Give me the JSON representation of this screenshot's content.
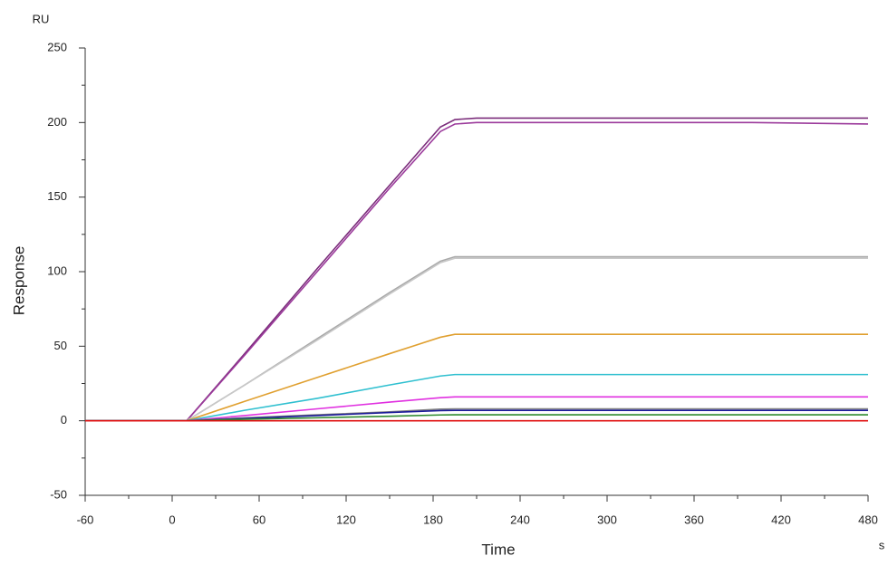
{
  "chart_data": {
    "type": "line",
    "x_unit": "s",
    "y_unit": "RU",
    "xlabel": "Time",
    "ylabel": "Response",
    "x": [
      -60,
      10,
      50,
      100,
      150,
      185,
      195,
      210,
      300,
      400,
      480
    ],
    "series": [
      {
        "color": "#7b2d7b",
        "values": [
          0,
          0,
          45,
          102,
          158,
          197,
          202,
          203,
          203,
          203,
          203
        ]
      },
      {
        "color": "#9b3a9b",
        "values": [
          0,
          0,
          44,
          100,
          156,
          194,
          199,
          200,
          200,
          200,
          199
        ]
      },
      {
        "color": "#a9a9a9",
        "values": [
          0,
          0,
          24,
          55,
          86,
          107,
          110,
          110,
          110,
          110,
          110
        ]
      },
      {
        "color": "#c8c8c8",
        "values": [
          0,
          0,
          24,
          54,
          85,
          106,
          109,
          109,
          109,
          109,
          109
        ]
      },
      {
        "color": "#e0a030",
        "values": [
          0,
          0,
          13,
          29,
          45,
          56,
          58,
          58,
          58,
          58,
          58
        ]
      },
      {
        "color": "#30c0d0",
        "values": [
          0,
          0,
          7,
          15,
          24,
          30,
          31,
          31,
          31,
          31,
          31
        ]
      },
      {
        "color": "#e030e0",
        "values": [
          0,
          0,
          3.5,
          8,
          12.5,
          15.5,
          16,
          16,
          16,
          16,
          16
        ]
      },
      {
        "color": "#808080",
        "values": [
          0,
          0,
          2,
          4,
          6,
          7.8,
          8,
          8,
          8,
          8,
          8
        ]
      },
      {
        "color": "#1a1a9a",
        "values": [
          0,
          0,
          1.5,
          3.5,
          5.5,
          6.8,
          7,
          7,
          7,
          7,
          7
        ]
      },
      {
        "color": "#2e8b2e",
        "values": [
          0,
          0,
          1,
          2,
          3,
          3.9,
          4,
          4,
          4,
          4,
          4
        ]
      },
      {
        "color": "#e01010",
        "values": [
          0,
          0,
          0,
          0,
          0,
          0,
          0,
          0,
          0,
          0,
          0
        ]
      }
    ],
    "xlim": [
      -60,
      480
    ],
    "ylim": [
      -50,
      250
    ],
    "xticks": [
      -60,
      0,
      60,
      120,
      180,
      240,
      300,
      360,
      420,
      480
    ],
    "yticks": [
      -50,
      0,
      50,
      100,
      150,
      200,
      250
    ],
    "xminorticks": [
      -30,
      30,
      90,
      150,
      210,
      270,
      330,
      390,
      450
    ],
    "yminorticks": [
      -25,
      25,
      75,
      125,
      175,
      225
    ]
  }
}
